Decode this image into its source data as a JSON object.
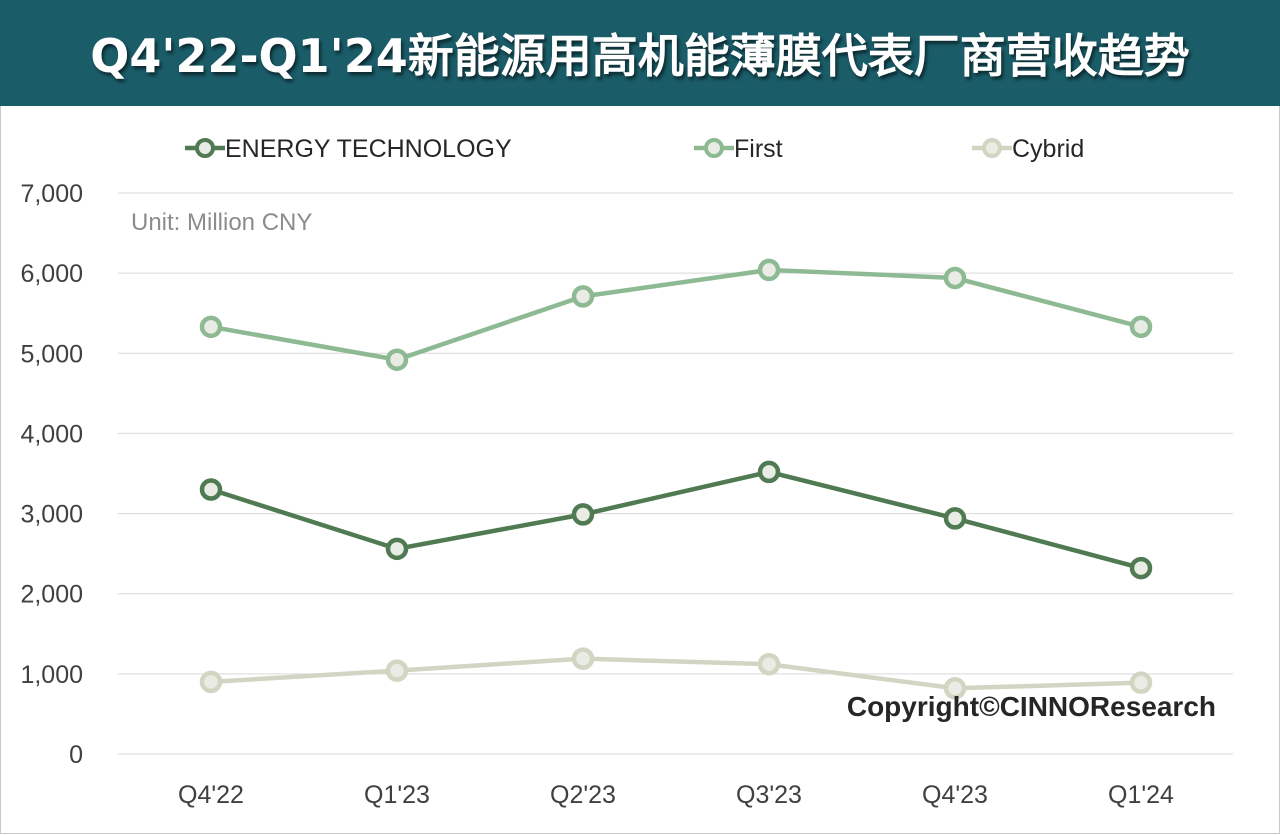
{
  "title": "Q4'22-Q1'24新能源用高机能薄膜代表厂商营收趋势",
  "unit_label": "Unit: Million CNY",
  "copyright": "Copyright©CINNOResearch",
  "colors": {
    "title_bg": "#1a5c68",
    "energy": "#4f7a52",
    "first": "#8db993",
    "cybrid": "#d2d5c1",
    "grid": "#d9d9d9",
    "text": "#404040",
    "unit_text": "#8c8c8c"
  },
  "chart_data": {
    "type": "line",
    "categories": [
      "Q4'22",
      "Q1'23",
      "Q2'23",
      "Q3'23",
      "Q4'23",
      "Q1'24"
    ],
    "series": [
      {
        "name": "ENERGY TECHNOLOGY",
        "values": [
          3300,
          2560,
          2990,
          3520,
          2940,
          2320
        ]
      },
      {
        "name": "First",
        "values": [
          5330,
          4920,
          5710,
          6040,
          5940,
          5330
        ]
      },
      {
        "name": "Cybrid",
        "values": [
          900,
          1040,
          1190,
          1120,
          820,
          890
        ]
      }
    ],
    "y_ticks": [
      "0",
      "1,000",
      "2,000",
      "3,000",
      "4,000",
      "5,000",
      "6,000",
      "7,000"
    ],
    "ylim": [
      0,
      7000
    ],
    "grid": true,
    "legend_position": "top"
  }
}
